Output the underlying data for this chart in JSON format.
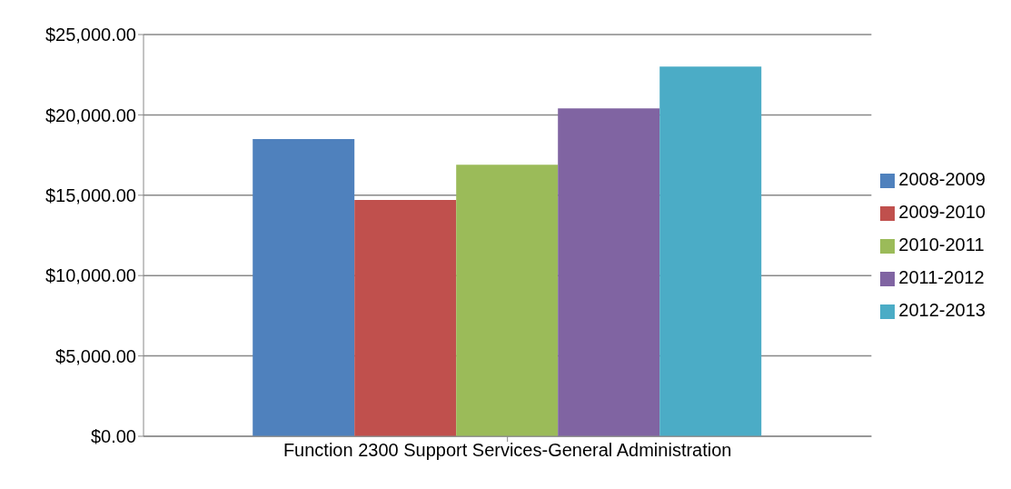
{
  "chart_data": {
    "type": "bar",
    "categories": [
      "Function 2300 Support Services-General Administration"
    ],
    "series": [
      {
        "name": "2008-2009",
        "color": "#4f81bd",
        "values": [
          18500
        ]
      },
      {
        "name": "2009-2010",
        "color": "#c0504d",
        "values": [
          14700
        ]
      },
      {
        "name": "2010-2011",
        "color": "#9bbb59",
        "values": [
          16900
        ]
      },
      {
        "name": "2011-2012",
        "color": "#8064a2",
        "values": [
          20400
        ]
      },
      {
        "name": "2012-2013",
        "color": "#4bacc6",
        "values": [
          23000
        ]
      }
    ],
    "ylim": [
      0,
      25000
    ],
    "yticks": [
      {
        "value": 0,
        "label": "$0.00"
      },
      {
        "value": 5000,
        "label": "$5,000.00"
      },
      {
        "value": 10000,
        "label": "$10,000.00"
      },
      {
        "value": 15000,
        "label": "$15,000.00"
      },
      {
        "value": 20000,
        "label": "$20,000.00"
      },
      {
        "value": 25000,
        "label": "$25,000.00"
      }
    ],
    "grid": "y",
    "legend": "right"
  }
}
